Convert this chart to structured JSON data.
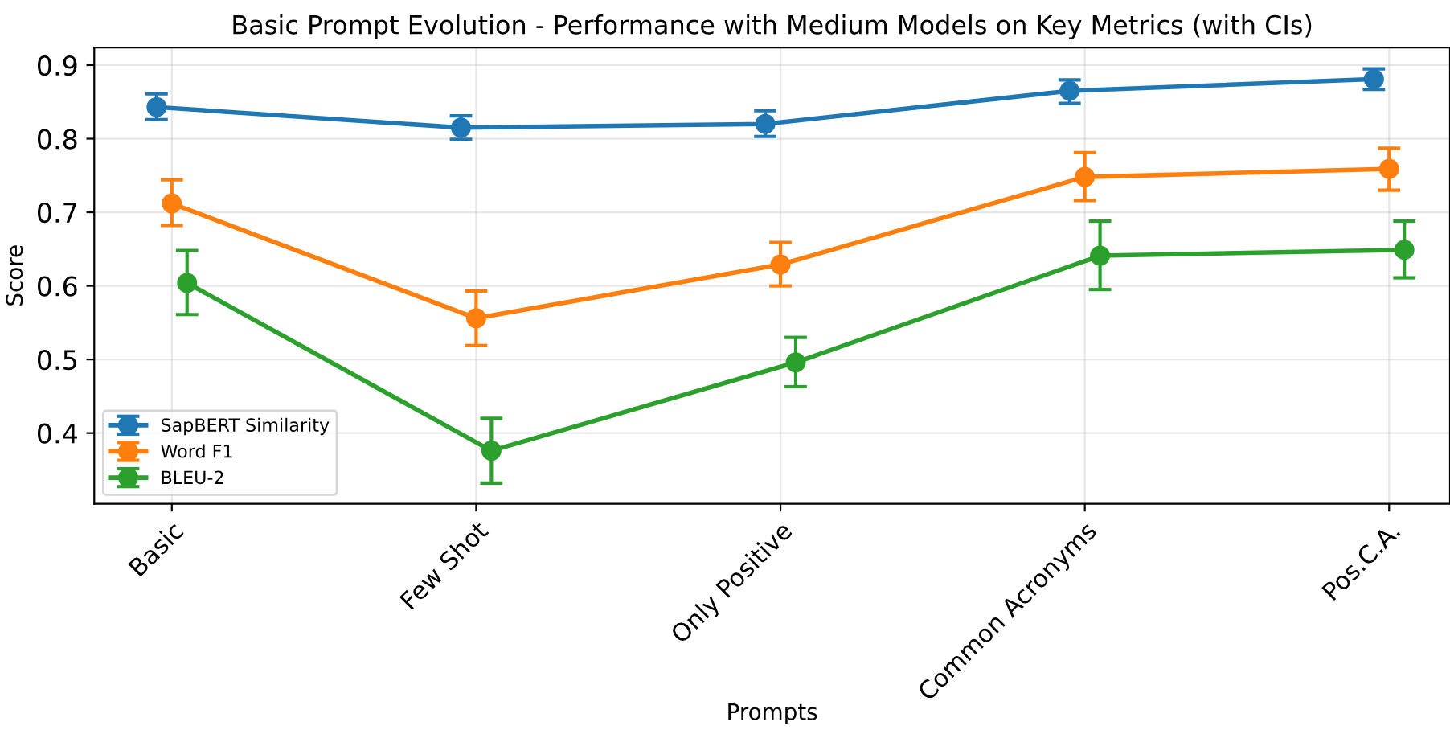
{
  "chart_data": {
    "type": "line",
    "title": "Basic Prompt Evolution - Performance with Medium Models on Key Metrics (with CIs)",
    "xlabel": "Prompts",
    "ylabel": "Score",
    "categories": [
      "Basic",
      "Few Shot",
      "Only Positive",
      "Common Acronyms",
      "Pos.C.A."
    ],
    "series": [
      {
        "name": "SapBERT Similarity",
        "color": "#1f77b4",
        "values": [
          0.843,
          0.815,
          0.82,
          0.865,
          0.881
        ],
        "errors": [
          [
            0.826,
            0.861
          ],
          [
            0.799,
            0.831
          ],
          [
            0.803,
            0.838
          ],
          [
            0.848,
            0.88
          ],
          [
            0.867,
            0.895
          ]
        ]
      },
      {
        "name": "Word F1",
        "color": "#ff7f0e",
        "values": [
          0.712,
          0.556,
          0.629,
          0.748,
          0.759
        ],
        "errors": [
          [
            0.682,
            0.744
          ],
          [
            0.519,
            0.593
          ],
          [
            0.6,
            0.659
          ],
          [
            0.716,
            0.781
          ],
          [
            0.73,
            0.787
          ]
        ]
      },
      {
        "name": "BLEU-2",
        "color": "#2ca02c",
        "values": [
          0.604,
          0.376,
          0.496,
          0.641,
          0.649
        ],
        "errors": [
          [
            0.561,
            0.648
          ],
          [
            0.332,
            0.42
          ],
          [
            0.463,
            0.53
          ],
          [
            0.595,
            0.688
          ],
          [
            0.611,
            0.688
          ]
        ]
      }
    ],
    "ylim": [
      0.304,
      0.924
    ],
    "yticks": [
      0.4,
      0.5,
      0.6,
      0.7,
      0.8,
      0.9
    ],
    "grid": true,
    "legend": "bottom left",
    "marker": "circle",
    "line_style": "solid"
  }
}
